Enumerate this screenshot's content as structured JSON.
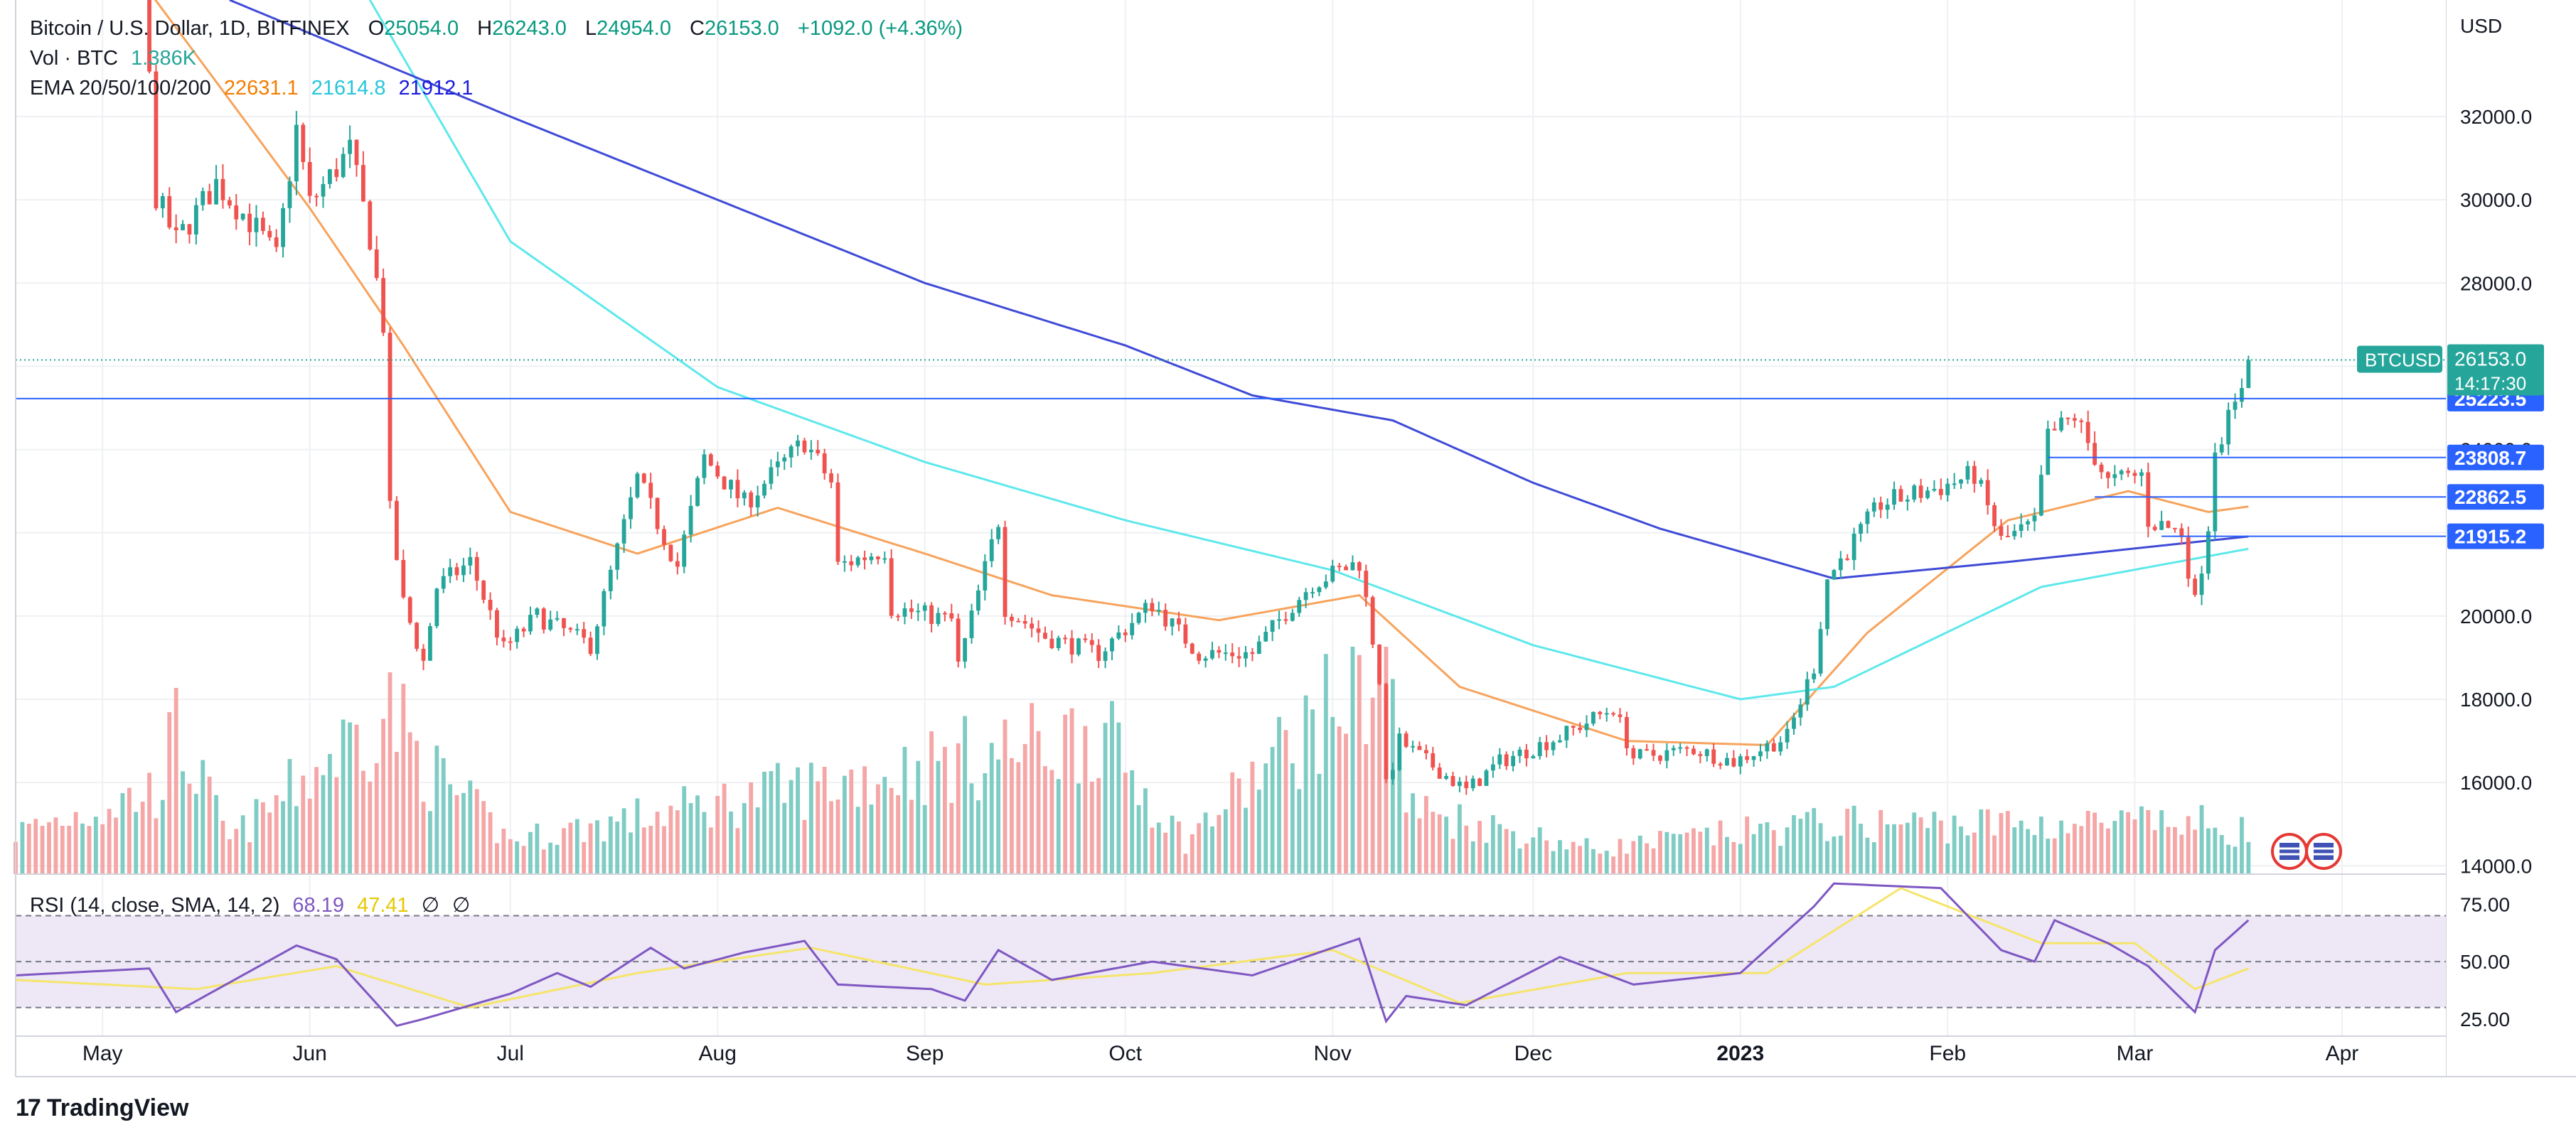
{
  "legend": {
    "title": "Bitcoin / U.S. Dollar, 1D, BITFINEX",
    "open_label": "O",
    "open": "25054.0",
    "high_label": "H",
    "high": "26243.0",
    "low_label": "L",
    "low": "24954.0",
    "close_label": "C",
    "close": "26153.0",
    "change": "+1092.0 (+4.36%)",
    "vol_label": "Vol · BTC",
    "vol_value": "1.386K",
    "ema_label": "EMA 20/50/100/200",
    "ema20": "22631.1",
    "ema50": "21614.8",
    "ema100": "21912.1",
    "rsi_label": "RSI (14, close, SMA, 14, 2)",
    "rsi_value": "68.19",
    "rsi_sma": "47.41",
    "rsi_extra1": "∅",
    "rsi_extra2": "∅"
  },
  "brand": {
    "name": "TradingView",
    "logo": "17"
  },
  "colors": {
    "up": "#26a69a",
    "down": "#ef5350",
    "vol_up": "#7fccc4",
    "vol_down": "#f5a6a6",
    "ema20": "#f7a35c",
    "ema50": "#5ee8ec",
    "ema100": "#3f4bd6",
    "rsi_line": "#7e57c2",
    "rsi_sma": "#f5e56b",
    "rsi_band": "#ede7f6",
    "hline": "#2962ff",
    "price_tag": "#26a69a",
    "level_tag": "#2962ff"
  },
  "chart_data": {
    "type": "candlestick",
    "symbol": "BTCUSD",
    "price_axis_label": "USD",
    "price_ylim": [
      13800,
      34800
    ],
    "price_ticks": [
      "14000.0",
      "16000.0",
      "18000.0",
      "20000.0",
      "22000.0",
      "24000.0",
      "26000.0",
      "28000.0",
      "30000.0",
      "32000.0"
    ],
    "x_labels": [
      {
        "label": "May",
        "date": "2022-05-01"
      },
      {
        "label": "Jun",
        "date": "2022-06-01"
      },
      {
        "label": "Jul",
        "date": "2022-07-01"
      },
      {
        "label": "Aug",
        "date": "2022-08-01"
      },
      {
        "label": "Sep",
        "date": "2022-09-01"
      },
      {
        "label": "Oct",
        "date": "2022-10-01"
      },
      {
        "label": "Nov",
        "date": "2022-11-01"
      },
      {
        "label": "Dec",
        "date": "2022-12-01"
      },
      {
        "label": "2023",
        "date": "2023-01-01"
      },
      {
        "label": "Feb",
        "date": "2023-02-01"
      },
      {
        "label": "Mar",
        "date": "2023-03-01"
      },
      {
        "label": "Apr",
        "date": "2023-04-01"
      }
    ],
    "x_range": [
      "2022-04-18",
      "2023-04-16"
    ],
    "last_price": {
      "label": "BTCUSD",
      "value": "26153.0",
      "countdown": "14:17:30",
      "price": 26153
    },
    "horizontal_levels": [
      {
        "value": "25223.5",
        "price": 25223.5,
        "from": "2022-04-18"
      },
      {
        "value": "23808.7",
        "price": 23808.7,
        "from": "2023-02-16"
      },
      {
        "value": "22862.5",
        "price": 22862.5,
        "from": "2023-02-23"
      },
      {
        "value": "21915.2",
        "price": 21915.2,
        "from": "2023-03-05"
      }
    ],
    "close_anchors": [
      [
        "2022-04-18",
        40500
      ],
      [
        "2022-05-07",
        35600
      ],
      [
        "2022-05-09",
        30100
      ],
      [
        "2022-05-12",
        29000
      ],
      [
        "2022-05-18",
        30400
      ],
      [
        "2022-05-24",
        29300
      ],
      [
        "2022-05-27",
        28600
      ],
      [
        "2022-05-30",
        31700
      ],
      [
        "2022-06-01",
        29900
      ],
      [
        "2022-06-07",
        31200
      ],
      [
        "2022-06-10",
        29100
      ],
      [
        "2022-06-12",
        27000
      ],
      [
        "2022-06-13",
        22500
      ],
      [
        "2022-06-15",
        20300
      ],
      [
        "2022-06-18",
        18900
      ],
      [
        "2022-06-20",
        20700
      ],
      [
        "2022-06-25",
        21300
      ],
      [
        "2022-06-30",
        19200
      ],
      [
        "2022-07-05",
        20000
      ],
      [
        "2022-07-13",
        19300
      ],
      [
        "2022-07-20",
        23300
      ],
      [
        "2022-07-26",
        21200
      ],
      [
        "2022-07-30",
        23800
      ],
      [
        "2022-08-05",
        22700
      ],
      [
        "2022-08-14",
        24200
      ],
      [
        "2022-08-18",
        23200
      ],
      [
        "2022-08-19",
        21200
      ],
      [
        "2022-08-26",
        21600
      ],
      [
        "2022-08-27",
        20200
      ],
      [
        "2022-09-05",
        19900
      ],
      [
        "2022-09-06",
        18800
      ],
      [
        "2022-09-12",
        22300
      ],
      [
        "2022-09-13",
        20200
      ],
      [
        "2022-09-19",
        19500
      ],
      [
        "2022-09-27",
        19100
      ],
      [
        "2022-10-05",
        20300
      ],
      [
        "2022-10-12",
        19100
      ],
      [
        "2022-10-20",
        19100
      ],
      [
        "2022-10-25",
        20100
      ],
      [
        "2022-10-29",
        20800
      ],
      [
        "2022-11-05",
        21300
      ],
      [
        "2022-11-08",
        18500
      ],
      [
        "2022-11-09",
        15900
      ],
      [
        "2022-11-11",
        17000
      ],
      [
        "2022-11-21",
        15800
      ],
      [
        "2022-11-26",
        16500
      ],
      [
        "2022-12-05",
        17100
      ],
      [
        "2022-12-13",
        17800
      ],
      [
        "2022-12-16",
        16600
      ],
      [
        "2022-12-25",
        16800
      ],
      [
        "2022-12-31",
        16500
      ],
      [
        "2023-01-08",
        17100
      ],
      [
        "2023-01-12",
        18800
      ],
      [
        "2023-01-14",
        20900
      ],
      [
        "2023-01-22",
        22700
      ],
      [
        "2023-01-31",
        23100
      ],
      [
        "2023-02-05",
        23400
      ],
      [
        "2023-02-09",
        21800
      ],
      [
        "2023-02-14",
        22200
      ],
      [
        "2023-02-16",
        24300
      ],
      [
        "2023-02-20",
        24800
      ],
      [
        "2023-02-25",
        23200
      ],
      [
        "2023-03-02",
        23400
      ],
      [
        "2023-03-03",
        22300
      ],
      [
        "2023-03-08",
        22000
      ],
      [
        "2023-03-10",
        20300
      ],
      [
        "2023-03-12",
        22200
      ],
      [
        "2023-03-13",
        24100
      ],
      [
        "2023-03-16",
        25000
      ],
      [
        "2023-03-18",
        26153
      ]
    ],
    "volume_anchors": [
      [
        "2022-04-18",
        0.25
      ],
      [
        "2022-05-09",
        0.5
      ],
      [
        "2022-05-12",
        0.85
      ],
      [
        "2022-05-20",
        0.2
      ],
      [
        "2022-06-13",
        1.0
      ],
      [
        "2022-06-18",
        0.65
      ],
      [
        "2022-07-01",
        0.2
      ],
      [
        "2022-09-22",
        0.8
      ],
      [
        "2022-09-26",
        0.9
      ],
      [
        "2022-10-10",
        0.2
      ],
      [
        "2022-11-09",
        1.3
      ],
      [
        "2022-11-12",
        0.4
      ],
      [
        "2022-12-10",
        0.15
      ],
      [
        "2023-01-13",
        0.3
      ],
      [
        "2023-03-13",
        0.3
      ],
      [
        "2023-03-18",
        0.25
      ]
    ],
    "ema_anchors": {
      "ema20": [
        [
          "2022-05-08",
          35000
        ],
        [
          "2022-06-01",
          29800
        ],
        [
          "2022-06-15",
          26500
        ],
        [
          "2022-07-01",
          22500
        ],
        [
          "2022-07-20",
          21500
        ],
        [
          "2022-08-10",
          22600
        ],
        [
          "2022-09-01",
          21500
        ],
        [
          "2022-09-20",
          20500
        ],
        [
          "2022-10-15",
          19900
        ],
        [
          "2022-11-05",
          20500
        ],
        [
          "2022-11-20",
          18300
        ],
        [
          "2022-12-15",
          17000
        ],
        [
          "2023-01-05",
          16900
        ],
        [
          "2023-01-20",
          19600
        ],
        [
          "2023-02-10",
          22300
        ],
        [
          "2023-02-28",
          23000
        ],
        [
          "2023-03-12",
          22500
        ],
        [
          "2023-03-18",
          22631
        ]
      ],
      "ema50": [
        [
          "2022-06-10",
          34800
        ],
        [
          "2022-07-01",
          29000
        ],
        [
          "2022-08-01",
          25500
        ],
        [
          "2022-09-01",
          23700
        ],
        [
          "2022-10-01",
          22300
        ],
        [
          "2022-11-01",
          21100
        ],
        [
          "2022-12-01",
          19300
        ],
        [
          "2023-01-01",
          18000
        ],
        [
          "2023-01-15",
          18300
        ],
        [
          "2023-02-15",
          20700
        ],
        [
          "2023-03-18",
          21615
        ]
      ],
      "ema100": [
        [
          "2022-05-20",
          34800
        ],
        [
          "2022-07-01",
          32000
        ],
        [
          "2022-08-01",
          30000
        ],
        [
          "2022-09-01",
          28000
        ],
        [
          "2022-10-01",
          26500
        ],
        [
          "2022-10-20",
          25300
        ],
        [
          "2022-11-10",
          24700
        ],
        [
          "2022-12-01",
          23200
        ],
        [
          "2022-12-20",
          22100
        ],
        [
          "2023-01-15",
          20900
        ],
        [
          "2023-02-10",
          21300
        ],
        [
          "2023-03-18",
          21912
        ]
      ]
    },
    "rsi": {
      "ylim": [
        20,
        85
      ],
      "ticks": [
        "75.00",
        "50.00",
        "25.00"
      ],
      "upper": 70,
      "middle": 50,
      "lower": 30,
      "line_anchors": [
        [
          "2022-04-18",
          44
        ],
        [
          "2022-05-08",
          47
        ],
        [
          "2022-05-12",
          28
        ],
        [
          "2022-05-30",
          57
        ],
        [
          "2022-06-05",
          51
        ],
        [
          "2022-06-14",
          22
        ],
        [
          "2022-06-18",
          25
        ],
        [
          "2022-07-01",
          36
        ],
        [
          "2022-07-08",
          45
        ],
        [
          "2022-07-13",
          39
        ],
        [
          "2022-07-22",
          56
        ],
        [
          "2022-07-27",
          47
        ],
        [
          "2022-08-05",
          54
        ],
        [
          "2022-08-14",
          59
        ],
        [
          "2022-08-19",
          40
        ],
        [
          "2022-09-02",
          38
        ],
        [
          "2022-09-07",
          33
        ],
        [
          "2022-09-12",
          55
        ],
        [
          "2022-09-20",
          42
        ],
        [
          "2022-10-05",
          50
        ],
        [
          "2022-10-20",
          44
        ],
        [
          "2022-11-05",
          60
        ],
        [
          "2022-11-09",
          24
        ],
        [
          "2022-11-12",
          35
        ],
        [
          "2022-11-21",
          31
        ],
        [
          "2022-12-05",
          52
        ],
        [
          "2022-12-16",
          40
        ],
        [
          "2023-01-01",
          45
        ],
        [
          "2023-01-12",
          74
        ],
        [
          "2023-01-15",
          84
        ],
        [
          "2023-01-31",
          82
        ],
        [
          "2023-02-09",
          55
        ],
        [
          "2023-02-14",
          50
        ],
        [
          "2023-02-17",
          68
        ],
        [
          "2023-02-25",
          58
        ],
        [
          "2023-03-03",
          48
        ],
        [
          "2023-03-10",
          28
        ],
        [
          "2023-03-13",
          55
        ],
        [
          "2023-03-18",
          68
        ]
      ],
      "sma_anchors": [
        [
          "2022-04-18",
          42
        ],
        [
          "2022-05-15",
          38
        ],
        [
          "2022-06-05",
          48
        ],
        [
          "2022-06-25",
          30
        ],
        [
          "2022-07-20",
          45
        ],
        [
          "2022-08-15",
          56
        ],
        [
          "2022-09-10",
          40
        ],
        [
          "2022-10-05",
          45
        ],
        [
          "2022-11-01",
          55
        ],
        [
          "2022-11-20",
          32
        ],
        [
          "2022-12-15",
          45
        ],
        [
          "2023-01-05",
          45
        ],
        [
          "2023-01-25",
          82
        ],
        [
          "2023-02-15",
          58
        ],
        [
          "2023-03-01",
          58
        ],
        [
          "2023-03-10",
          38
        ],
        [
          "2023-03-18",
          47
        ]
      ]
    }
  }
}
